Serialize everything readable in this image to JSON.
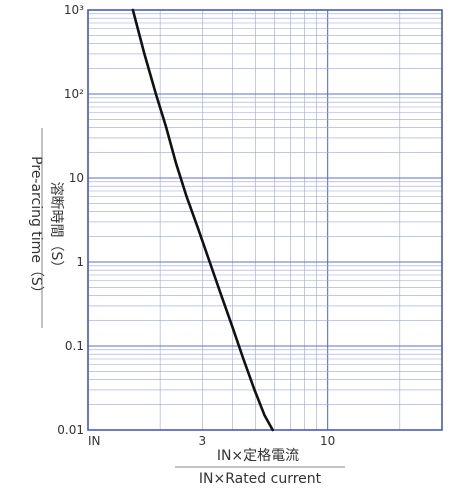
{
  "chart_data": {
    "type": "line",
    "title": "",
    "xlabel_jp": "IN×定格電流",
    "xlabel_en": "IN×Rated current",
    "ylabel_jp": "溶断時間（S）",
    "ylabel_en": "Pre-arcing time（S）",
    "xscale": "log",
    "yscale": "log",
    "xlim": [
      1,
      30
    ],
    "ylim": [
      0.01,
      1000
    ],
    "grid": true,
    "x_ticks": [
      {
        "value": 1,
        "label": "IN"
      },
      {
        "value": 3,
        "label": "3"
      },
      {
        "value": 10,
        "label": "10"
      }
    ],
    "y_ticks": [
      {
        "value": 1000,
        "label": "10³"
      },
      {
        "value": 100,
        "label": "10²"
      },
      {
        "value": 10,
        "label": "10"
      },
      {
        "value": 1,
        "label": "1"
      },
      {
        "value": 0.1,
        "label": "0.1"
      },
      {
        "value": 0.01,
        "label": "0.01"
      }
    ],
    "series": [
      {
        "x": [
          1.54,
          1.72,
          1.92,
          2.12,
          2.33,
          2.58,
          2.88,
          3.22,
          3.6,
          4.0,
          4.45,
          4.95,
          5.45,
          5.9
        ],
        "y": [
          1000,
          300,
          100,
          40,
          15,
          6,
          2.5,
          1.0,
          0.4,
          0.17,
          0.07,
          0.03,
          0.015,
          0.01
        ]
      }
    ]
  }
}
